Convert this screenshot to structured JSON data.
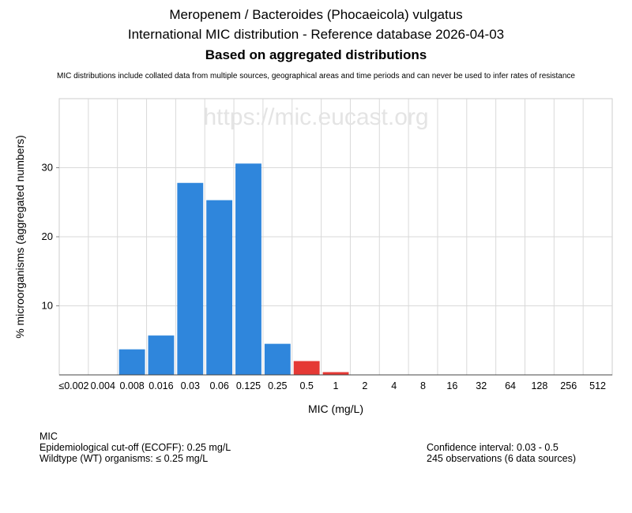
{
  "header": {
    "title_line1": "Meropenem / Bacteroides (Phocaeicola) vulgatus",
    "title_line2": "International MIC distribution - Reference database 2026-04-03",
    "title_line3": "Based on aggregated distributions",
    "disclaimer": "MIC distributions include collated data from multiple sources, geographical areas and time periods and can never be used to infer rates of resistance"
  },
  "watermark": "https://mic.eucast.org",
  "chart_data": {
    "type": "bar",
    "categories": [
      "≤0.002",
      "0.004",
      "0.008",
      "0.016",
      "0.03",
      "0.06",
      "0.125",
      "0.25",
      "0.5",
      "1",
      "2",
      "4",
      "8",
      "16",
      "32",
      "64",
      "128",
      "256",
      "512"
    ],
    "values": [
      0,
      0,
      3.7,
      5.7,
      27.8,
      25.3,
      30.6,
      4.5,
      2.0,
      0.4,
      0,
      0,
      0,
      0,
      0,
      0,
      0,
      0,
      0
    ],
    "bar_status": [
      "wt",
      "wt",
      "wt",
      "wt",
      "wt",
      "wt",
      "wt",
      "wt",
      "nwt",
      "nwt",
      "nwt",
      "nwt",
      "nwt",
      "nwt",
      "nwt",
      "nwt",
      "nwt",
      "nwt",
      "nwt"
    ],
    "colors": {
      "wt": "#2f86dc",
      "nwt": "#e53935"
    },
    "xlabel": "MIC (mg/L)",
    "ylabel": "% microorganisms (aggregated numbers)",
    "ylim": [
      0,
      40
    ],
    "yticks": [
      10,
      20,
      30
    ],
    "grid": true
  },
  "footer": {
    "mic_label": "MIC",
    "ecoff": "Epidemiological cut-off (ECOFF): 0.25 mg/L",
    "wildtype": "Wildtype (WT) organisms: ≤ 0.25 mg/L",
    "confidence": "Confidence interval: 0.03 - 0.5",
    "observations": "245 observations (6 data sources)"
  }
}
